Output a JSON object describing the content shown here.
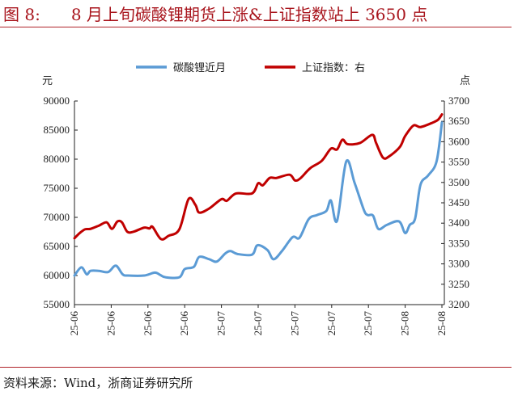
{
  "title": {
    "figure_no": "图 8:",
    "text": "8 月上旬碳酸锂期货上涨&上证指数站上 3650 点"
  },
  "footer": "资料来源：Wind，浙商证券研究所",
  "colors": {
    "title": "#a8141c",
    "lithium": "#5b9bd5",
    "sse": "#c00000"
  },
  "chart_data": {
    "type": "line",
    "title": "",
    "left_unit": "元",
    "right_unit": "点",
    "x_tick_labels": [
      "25-06",
      "25-06",
      "25-06",
      "25-06",
      "25-07",
      "25-07",
      "25-07",
      "25-07",
      "25-07",
      "25-08",
      "25-08"
    ],
    "x_range": [
      0,
      48
    ],
    "left_ylim": [
      55000,
      90000
    ],
    "left_ticks": [
      55000,
      60000,
      65000,
      70000,
      75000,
      80000,
      85000,
      90000
    ],
    "right_ylim": [
      3200,
      3700
    ],
    "right_ticks": [
      3200,
      3250,
      3300,
      3350,
      3400,
      3450,
      3500,
      3550,
      3600,
      3650,
      3700
    ],
    "legend_position": "top",
    "grid": false,
    "series": [
      {
        "name": "碳酸锂近月",
        "axis": "left",
        "color": "#5b9bd5",
        "x": [
          0,
          0.9,
          1.6,
          2.1,
          3.2,
          4.4,
          5.4,
          6.3,
          7.0,
          9.1,
          10.5,
          11.2,
          11.9,
          13.7,
          14.4,
          15.6,
          16.3,
          17.6,
          18.6,
          19.7,
          20.4,
          21.3,
          23.2,
          23.9,
          25.2,
          26.0,
          27.1,
          28.5,
          29.4,
          30.6,
          31.7,
          32.9,
          33.5,
          34.3,
          35.5,
          36.6,
          37.8,
          38.3,
          39.0,
          39.7,
          40.8,
          42.4,
          43.2,
          43.8,
          44.5,
          45.2,
          46.2,
          47.3,
          48.0
        ],
        "y": [
          60000,
          61400,
          60200,
          60800,
          60800,
          60600,
          61700,
          60200,
          60000,
          60000,
          60500,
          60100,
          59700,
          59700,
          61100,
          61500,
          63200,
          62800,
          62400,
          63800,
          64200,
          63700,
          63600,
          65200,
          64400,
          62800,
          64200,
          66600,
          66500,
          69700,
          70400,
          71100,
          72900,
          69400,
          79600,
          75900,
          71300,
          70400,
          70300,
          68000,
          68700,
          69300,
          67300,
          68700,
          69800,
          75600,
          77200,
          79600,
          86300
        ]
      },
      {
        "name": "上证指数：右",
        "axis": "right",
        "color": "#c00000",
        "x": [
          0,
          0.7,
          1.4,
          2.1,
          3.2,
          4.2,
          4.9,
          5.6,
          6.2,
          6.9,
          7.7,
          9.1,
          9.8,
          10.2,
          11.3,
          12.3,
          13.7,
          14.9,
          15.8,
          16.3,
          17.6,
          19.2,
          19.9,
          21.1,
          23.2,
          24.0,
          24.6,
          25.5,
          26.4,
          28.1,
          28.8,
          29.5,
          30.8,
          32.3,
          33.5,
          34.3,
          35.0,
          35.7,
          37.3,
          38.9,
          39.4,
          40.3,
          41.1,
          42.5,
          43.2,
          44.3,
          45.2,
          46.8,
          47.5,
          48.0
        ],
        "y": [
          3363,
          3376,
          3385,
          3386,
          3394,
          3402,
          3386,
          3404,
          3402,
          3379,
          3379,
          3389,
          3387,
          3391,
          3361,
          3369,
          3385,
          3459,
          3445,
          3426,
          3436,
          3459,
          3455,
          3473,
          3473,
          3498,
          3493,
          3511,
          3511,
          3519,
          3505,
          3510,
          3535,
          3553,
          3583,
          3581,
          3605,
          3594,
          3597,
          3617,
          3597,
          3561,
          3564,
          3587,
          3614,
          3640,
          3636,
          3647,
          3654,
          3667
        ]
      }
    ]
  }
}
